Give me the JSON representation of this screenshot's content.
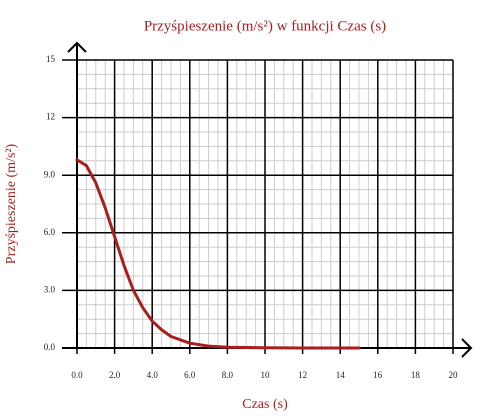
{
  "chart_data": {
    "type": "line",
    "title": "Przyśpieszenie (m/s²) w funkcji Czas (s)",
    "x_label": "Czas (s)",
    "y_label": "Przyśpieszenie (m/s²)",
    "x": [
      0,
      0.5,
      1,
      1.5,
      2,
      2.5,
      3,
      3.5,
      4,
      4.5,
      5,
      6,
      7,
      8,
      10,
      12,
      15
    ],
    "values": [
      9.8,
      9.5,
      8.6,
      7.3,
      5.8,
      4.3,
      3.0,
      2.1,
      1.4,
      0.95,
      0.6,
      0.25,
      0.1,
      0.04,
      0.01,
      0,
      0
    ],
    "color": "#a91e1e",
    "xlim": [
      0,
      20
    ],
    "ylim": [
      0,
      15
    ],
    "xticks": [
      {
        "value": 0,
        "label": "0.0"
      },
      {
        "value": 2,
        "label": "2.0"
      },
      {
        "value": 4,
        "label": "4.0"
      },
      {
        "value": 6,
        "label": "6.0"
      },
      {
        "value": 8,
        "label": "8.0"
      },
      10,
      12,
      14,
      16,
      18,
      20
    ],
    "yticks": [
      {
        "value": 0,
        "label": "0.0"
      },
      {
        "value": 3,
        "label": "3.0"
      },
      {
        "value": 6,
        "label": "6.0"
      },
      {
        "value": 9,
        "label": "9.0"
      },
      12,
      15
    ],
    "grid": true
  }
}
